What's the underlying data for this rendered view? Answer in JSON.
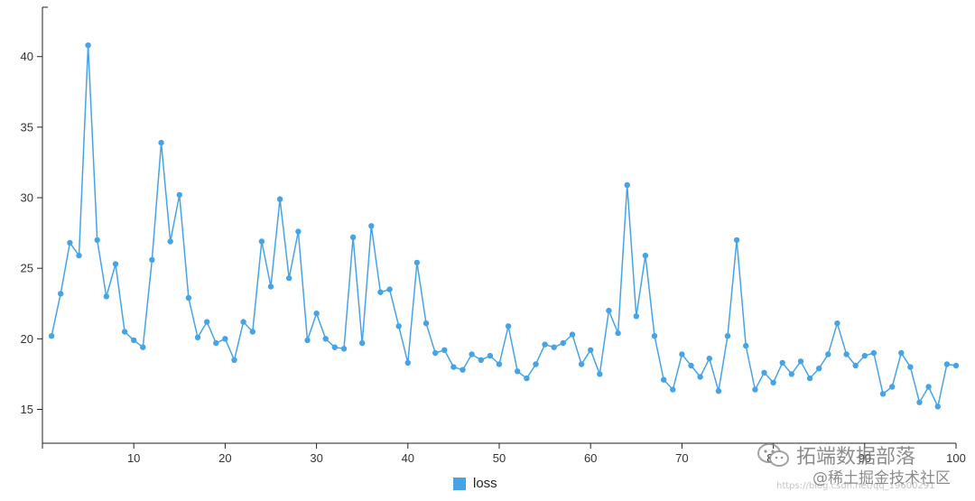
{
  "chart_data": {
    "type": "line",
    "title": "",
    "xlabel": "",
    "ylabel": "",
    "x_ticks": [
      10,
      20,
      30,
      40,
      50,
      60,
      70,
      80,
      90,
      100
    ],
    "y_ticks": [
      15,
      20,
      25,
      30,
      35,
      40
    ],
    "xlim": [
      0,
      100
    ],
    "ylim": [
      12.6,
      43.5
    ],
    "grid": false,
    "legend_position": "bottom-center",
    "series": [
      {
        "name": "loss",
        "color": "#46a4e6",
        "x": [
          1,
          2,
          3,
          4,
          5,
          6,
          7,
          8,
          9,
          10,
          11,
          12,
          13,
          14,
          15,
          16,
          17,
          18,
          19,
          20,
          21,
          22,
          23,
          24,
          25,
          26,
          27,
          28,
          29,
          30,
          31,
          32,
          33,
          34,
          35,
          36,
          37,
          38,
          39,
          40,
          41,
          42,
          43,
          44,
          45,
          46,
          47,
          48,
          49,
          50,
          51,
          52,
          53,
          54,
          55,
          56,
          57,
          58,
          59,
          60,
          61,
          62,
          63,
          64,
          65,
          66,
          67,
          68,
          69,
          70,
          71,
          72,
          73,
          74,
          75,
          76,
          77,
          78,
          79,
          80,
          81,
          82,
          83,
          84,
          85,
          86,
          87,
          88,
          89,
          90,
          91,
          92,
          93,
          94,
          95,
          96,
          97,
          98,
          99,
          100
        ],
        "y": [
          20.2,
          23.2,
          26.8,
          25.9,
          40.8,
          27.0,
          23.0,
          25.3,
          20.5,
          19.9,
          19.4,
          25.6,
          33.9,
          26.9,
          30.2,
          22.9,
          20.1,
          21.2,
          19.7,
          20.0,
          18.5,
          21.2,
          20.5,
          26.9,
          23.7,
          29.9,
          24.3,
          27.6,
          19.9,
          21.8,
          20.0,
          19.4,
          19.3,
          27.2,
          19.7,
          28.0,
          23.3,
          23.5,
          20.9,
          18.3,
          25.4,
          21.1,
          19.0,
          19.2,
          18.0,
          17.8,
          18.9,
          18.5,
          18.8,
          18.2,
          20.9,
          17.7,
          17.2,
          18.2,
          19.6,
          19.4,
          19.7,
          20.3,
          18.2,
          19.2,
          17.5,
          22.0,
          20.4,
          30.9,
          21.6,
          25.9,
          20.2,
          17.1,
          16.4,
          18.9,
          18.1,
          17.3,
          18.6,
          16.3,
          20.2,
          27.0,
          19.5,
          16.4,
          17.6,
          16.9,
          18.3,
          17.5,
          18.4,
          17.2,
          17.9,
          18.9,
          21.1,
          18.9,
          18.1,
          18.8,
          19.0,
          16.1,
          16.6,
          19.0,
          18.0,
          15.5,
          16.6,
          15.2,
          18.2,
          18.1
        ]
      }
    ]
  },
  "legend": {
    "label": "loss",
    "color": "#46a4e6"
  },
  "watermark": {
    "line1": "拓端数据部落",
    "line2": "@稀土掘金技术社区",
    "url": "https://blog.csdn.net/qq_19600291"
  }
}
